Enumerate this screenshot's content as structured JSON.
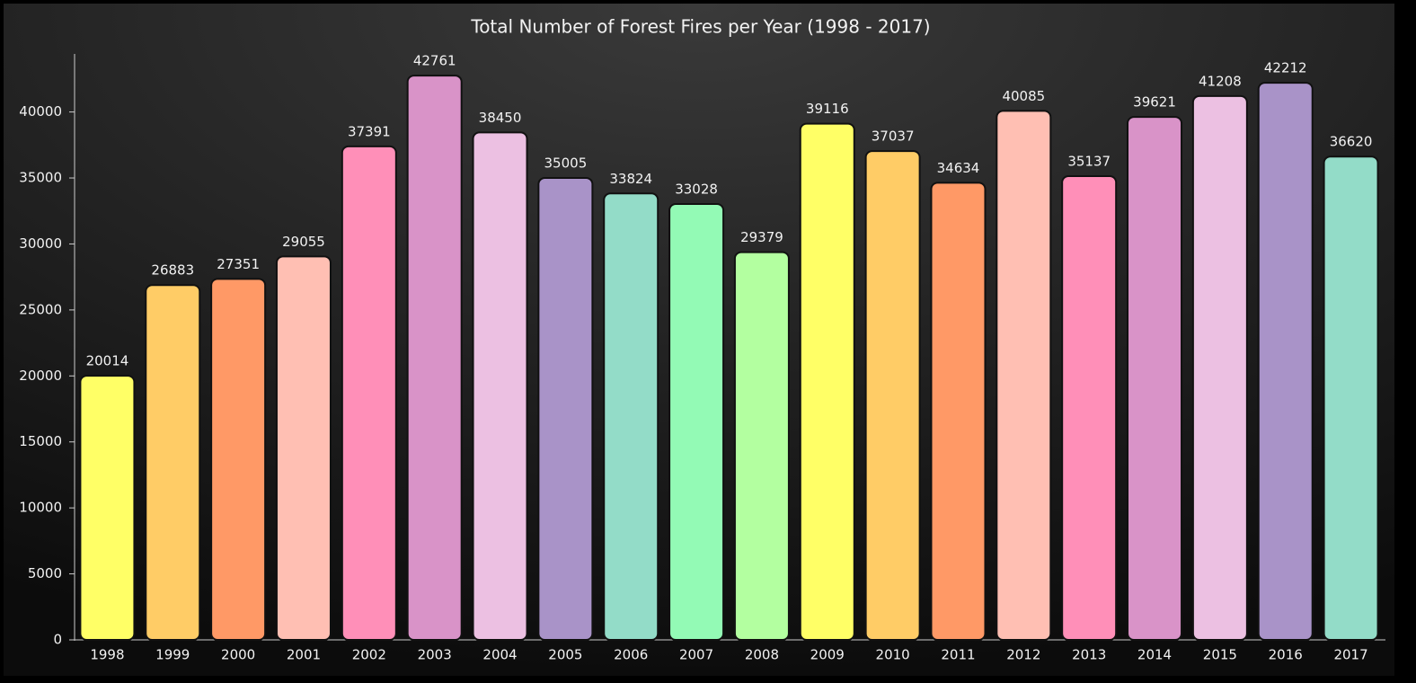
{
  "chart_data": {
    "type": "bar",
    "title": "Total Number of Forest Fires per Year (1998 - 2017)",
    "categories": [
      "1998",
      "1999",
      "2000",
      "2001",
      "2002",
      "2003",
      "2004",
      "2005",
      "2006",
      "2007",
      "2008",
      "2009",
      "2010",
      "2011",
      "2012",
      "2013",
      "2014",
      "2015",
      "2016",
      "2017"
    ],
    "values": [
      20014,
      26883,
      27351,
      29055,
      37391,
      42761,
      38450,
      35005,
      33824,
      33028,
      29379,
      39116,
      37037,
      34634,
      40085,
      35137,
      39621,
      41208,
      42212,
      36620
    ],
    "colors": [
      "#ffff66",
      "#ffcc66",
      "#ff9966",
      "#ffbfb3",
      "#ff8fb8",
      "#d993c8",
      "#ecc0e2",
      "#a993c8",
      "#93dcc8",
      "#93fab5",
      "#b3ffa0",
      "#ffff66",
      "#ffcc66",
      "#ff9966",
      "#ffbfb3",
      "#ff8fb8",
      "#d993c8",
      "#ecc0e2",
      "#a993c8",
      "#93dcc8"
    ],
    "ylim": [
      0,
      44400
    ],
    "yticks": [
      0,
      5000,
      10000,
      15000,
      20000,
      25000,
      30000,
      35000,
      40000
    ]
  }
}
